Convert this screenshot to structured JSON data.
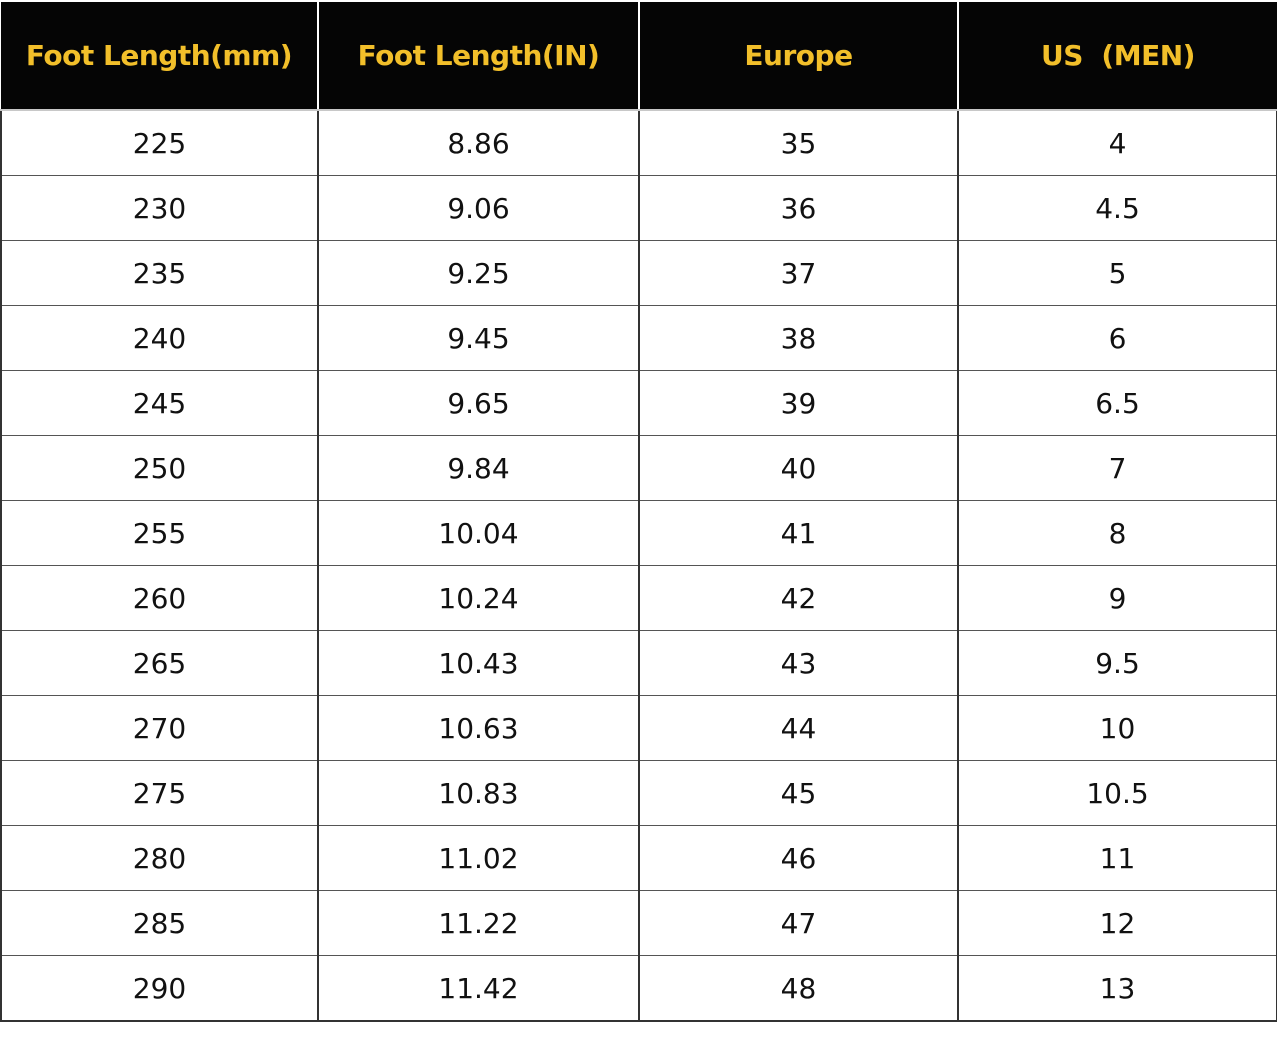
{
  "table": {
    "headers": [
      "Foot Length(mm)",
      "Foot Length(IN)",
      "Europe",
      "US  (MEN)"
    ],
    "rows": [
      [
        "225",
        "8.86",
        "35",
        "4"
      ],
      [
        "230",
        "9.06",
        "36",
        "4.5"
      ],
      [
        "235",
        "9.25",
        "37",
        "5"
      ],
      [
        "240",
        "9.45",
        "38",
        "6"
      ],
      [
        "245",
        "9.65",
        "39",
        "6.5"
      ],
      [
        "250",
        "9.84",
        "40",
        "7"
      ],
      [
        "255",
        "10.04",
        "41",
        "8"
      ],
      [
        "260",
        "10.24",
        "42",
        "9"
      ],
      [
        "265",
        "10.43",
        "43",
        "9.5"
      ],
      [
        "270",
        "10.63",
        "44",
        "10"
      ],
      [
        "275",
        "10.83",
        "45",
        "10.5"
      ],
      [
        "280",
        "11.02",
        "46",
        "11"
      ],
      [
        "285",
        "11.22",
        "47",
        "12"
      ],
      [
        "290",
        "11.42",
        "48",
        "13"
      ]
    ]
  },
  "colors": {
    "header_bg": "#050505",
    "header_text": "#f2bf2a"
  }
}
